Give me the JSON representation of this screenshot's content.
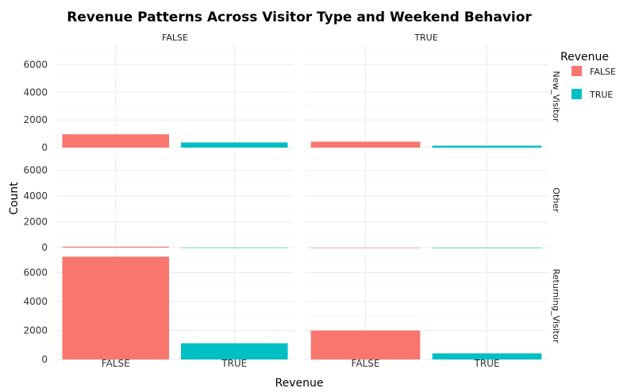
{
  "chart_data": {
    "type": "bar",
    "title": "Revenue Patterns Across Visitor Type and Weekend Behavior",
    "xlabel": "Revenue",
    "ylabel": "Count",
    "categories": [
      "FALSE",
      "TRUE"
    ],
    "facet_cols": [
      "FALSE",
      "TRUE"
    ],
    "facet_rows": [
      "New_Visitor",
      "Other",
      "Returning_Visitor"
    ],
    "ylim": [
      0,
      7400
    ],
    "yticks": [
      0,
      2000,
      4000,
      6000
    ],
    "legend": {
      "title": "Revenue",
      "position": "right",
      "entries": [
        "FALSE",
        "TRUE"
      ]
    },
    "colors": {
      "FALSE": "#F8766D",
      "TRUE": "#00BFC4"
    },
    "grid": true,
    "panels": [
      {
        "row": "New_Visitor",
        "col": "FALSE",
        "values": [
          960,
          370
        ]
      },
      {
        "row": "New_Visitor",
        "col": "TRUE",
        "values": [
          430,
          140
        ]
      },
      {
        "row": "Other",
        "col": "FALSE",
        "values": [
          70,
          10
        ]
      },
      {
        "row": "Other",
        "col": "TRUE",
        "values": [
          0,
          0
        ]
      },
      {
        "row": "Returning_Visitor",
        "col": "FALSE",
        "values": [
          7100,
          1120
        ]
      },
      {
        "row": "Returning_Visitor",
        "col": "TRUE",
        "values": [
          2000,
          420
        ]
      }
    ]
  }
}
